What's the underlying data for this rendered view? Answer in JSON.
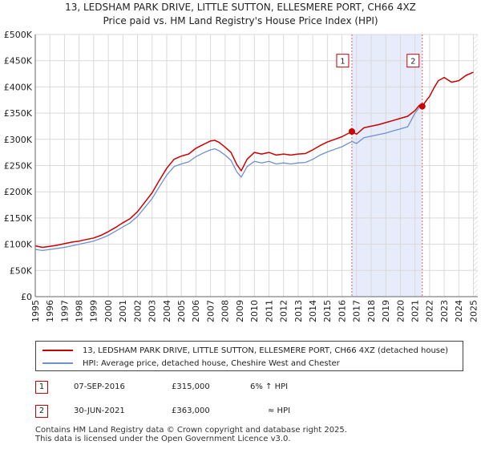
{
  "chart_data": {
    "type": "line",
    "title": "13, LEDSHAM PARK DRIVE, LITTLE SUTTON, ELLESMERE PORT, CH66 4XZ",
    "subtitle": "Price paid vs. HM Land Registry's House Price Index (HPI)",
    "xlabel": "",
    "ylabel": "",
    "xlim": [
      1995,
      2025.3
    ],
    "ylim": [
      0,
      500000
    ],
    "grid": true,
    "yticks": [
      {
        "value": 0,
        "label": "£0"
      },
      {
        "value": 50000,
        "label": "£50K"
      },
      {
        "value": 100000,
        "label": "£100K"
      },
      {
        "value": 150000,
        "label": "£150K"
      },
      {
        "value": 200000,
        "label": "£200K"
      },
      {
        "value": 250000,
        "label": "£250K"
      },
      {
        "value": 300000,
        "label": "£300K"
      },
      {
        "value": 350000,
        "label": "£350K"
      },
      {
        "value": 400000,
        "label": "£400K"
      },
      {
        "value": 450000,
        "label": "£450K"
      },
      {
        "value": 500000,
        "label": "£500K"
      }
    ],
    "xticks": [
      "1995",
      "1996",
      "1997",
      "1998",
      "1999",
      "2000",
      "2001",
      "2002",
      "2003",
      "2004",
      "2005",
      "2006",
      "2007",
      "2008",
      "2009",
      "2010",
      "2011",
      "2012",
      "2013",
      "2014",
      "2015",
      "2016",
      "2017",
      "2018",
      "2019",
      "2020",
      "2021",
      "2022",
      "2023",
      "2024",
      "2025"
    ],
    "series": [
      {
        "name": "13, LEDSHAM PARK DRIVE, LITTLE SUTTON, ELLESMERE PORT, CH66 4XZ (detached house)",
        "color": "#cc0000",
        "x": [
          1995,
          1995.5,
          1996,
          1996.5,
          1997,
          1997.5,
          1998,
          1998.5,
          1999,
          1999.5,
          2000,
          2000.5,
          2001,
          2001.5,
          2002,
          2002.5,
          2003,
          2003.5,
          2004,
          2004.5,
          2005,
          2005.5,
          2006,
          2006.5,
          2007,
          2007.3,
          2007.6,
          2008,
          2008.4,
          2008.8,
          2009.1,
          2009.5,
          2010,
          2010.5,
          2011,
          2011.5,
          2012,
          2012.5,
          2013,
          2013.5,
          2014,
          2014.5,
          2015,
          2015.5,
          2016,
          2016.68,
          2017,
          2017.5,
          2018,
          2018.5,
          2019,
          2019.5,
          2020,
          2020.5,
          2021,
          2021.3,
          2021.5,
          2021.8,
          2022,
          2022.3,
          2022.6,
          2023,
          2023.5,
          2024,
          2024.5,
          2025
        ],
        "y": [
          97000,
          94000,
          96000,
          98000,
          101000,
          104000,
          106000,
          109000,
          112000,
          117000,
          124000,
          132000,
          141000,
          149000,
          162000,
          180000,
          198000,
          222000,
          245000,
          262000,
          268000,
          272000,
          283000,
          290000,
          297000,
          298000,
          294000,
          285000,
          275000,
          252000,
          240000,
          262000,
          275000,
          272000,
          275000,
          270000,
          272000,
          270000,
          272000,
          273000,
          280000,
          288000,
          295000,
          300000,
          305000,
          315000,
          310000,
          322000,
          325000,
          328000,
          332000,
          336000,
          340000,
          344000,
          355000,
          365000,
          363000,
          375000,
          382000,
          398000,
          412000,
          418000,
          409000,
          412000,
          422000,
          428000
        ]
      },
      {
        "name": "HPI: Average price, detached house, Cheshire West and Chester",
        "color": "#6f8fd0",
        "x": [
          1995,
          1995.5,
          1996,
          1996.5,
          1997,
          1997.5,
          1998,
          1998.5,
          1999,
          1999.5,
          2000,
          2000.5,
          2001,
          2001.5,
          2002,
          2002.5,
          2003,
          2003.5,
          2004,
          2004.5,
          2005,
          2005.5,
          2006,
          2006.5,
          2007,
          2007.3,
          2007.6,
          2008,
          2008.4,
          2008.8,
          2009.1,
          2009.5,
          2010,
          2010.5,
          2011,
          2011.5,
          2012,
          2012.5,
          2013,
          2013.5,
          2014,
          2014.5,
          2015,
          2015.5,
          2016,
          2016.68,
          2017,
          2017.5,
          2018,
          2018.5,
          2019,
          2019.5,
          2020,
          2020.5,
          2021,
          2021.3
        ],
        "y": [
          90000,
          88000,
          90000,
          92000,
          94000,
          97000,
          100000,
          103000,
          106000,
          111000,
          117000,
          125000,
          133000,
          141000,
          153000,
          170000,
          187000,
          210000,
          232000,
          248000,
          253000,
          257000,
          267000,
          274000,
          280000,
          282000,
          278000,
          270000,
          260000,
          238000,
          228000,
          248000,
          258000,
          255000,
          258000,
          253000,
          255000,
          253000,
          255000,
          256000,
          262000,
          270000,
          276000,
          281000,
          286000,
          296000,
          292000,
          303000,
          306000,
          309000,
          312000,
          316000,
          320000,
          324000,
          350000,
          361000
        ]
      }
    ],
    "sales": [
      {
        "label": "1",
        "date": "07-SEP-2016",
        "price": "£315,000",
        "relation": "6% ↑ HPI",
        "x": 2016.68,
        "y": 315000
      },
      {
        "label": "2",
        "date": "30-JUN-2021",
        "price": "£363,000",
        "relation": "≈ HPI",
        "x": 2021.5,
        "y": 363000
      }
    ],
    "highlight_range": [
      2016.68,
      2021.5
    ],
    "hatch_from": 2025
  },
  "footer": {
    "line1": "Contains HM Land Registry data © Crown copyright and database right 2025.",
    "line2": "This data is licensed under the Open Government Licence v3.0."
  }
}
